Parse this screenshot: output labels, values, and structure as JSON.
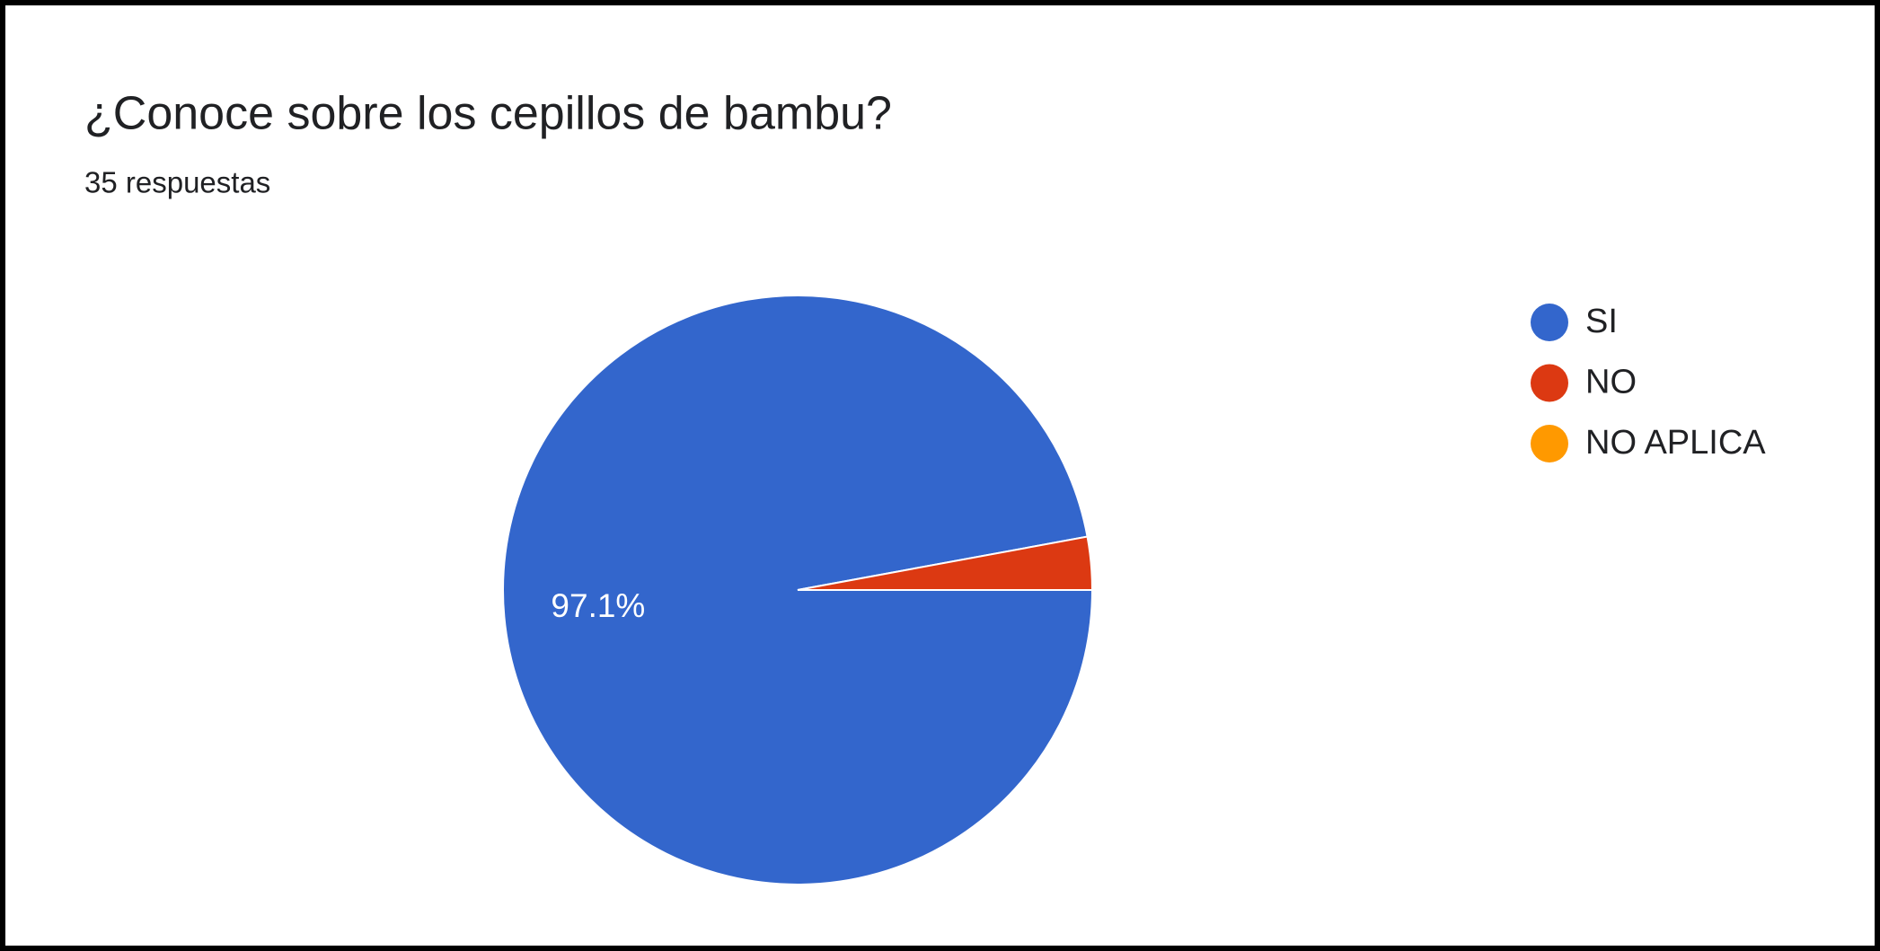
{
  "chart_data": {
    "type": "pie",
    "title": "¿Conoce sobre los cepillos de bambu?",
    "subtitle": "35 respuestas",
    "categories": [
      "SI",
      "NO",
      "NO APLICA"
    ],
    "values": [
      97.1,
      2.9,
      0
    ],
    "value_labels": [
      "97.1%",
      null,
      null
    ],
    "colors": [
      "#3366cc",
      "#dc3912",
      "#ff9900"
    ],
    "legend": "right"
  }
}
